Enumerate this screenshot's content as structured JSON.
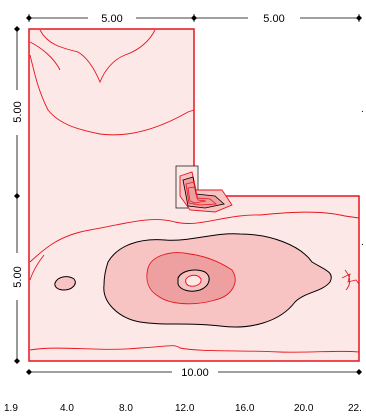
{
  "dimensions": {
    "top_left": "5.00",
    "top_right": "5.00",
    "left_upper": "5.00",
    "left_lower": "5.00",
    "bottom": "10.00"
  },
  "scale": {
    "labels": [
      "1.9",
      "4.0",
      "8.0",
      "12.0",
      "16.0",
      "20.0",
      "22."
    ]
  },
  "colors": {
    "outline": "#e8141e",
    "fill_light": "#fde8e8",
    "fill_mid": "#f7c3c3",
    "fill_dark": "#eea0a0",
    "contour_black": "#000000"
  }
}
